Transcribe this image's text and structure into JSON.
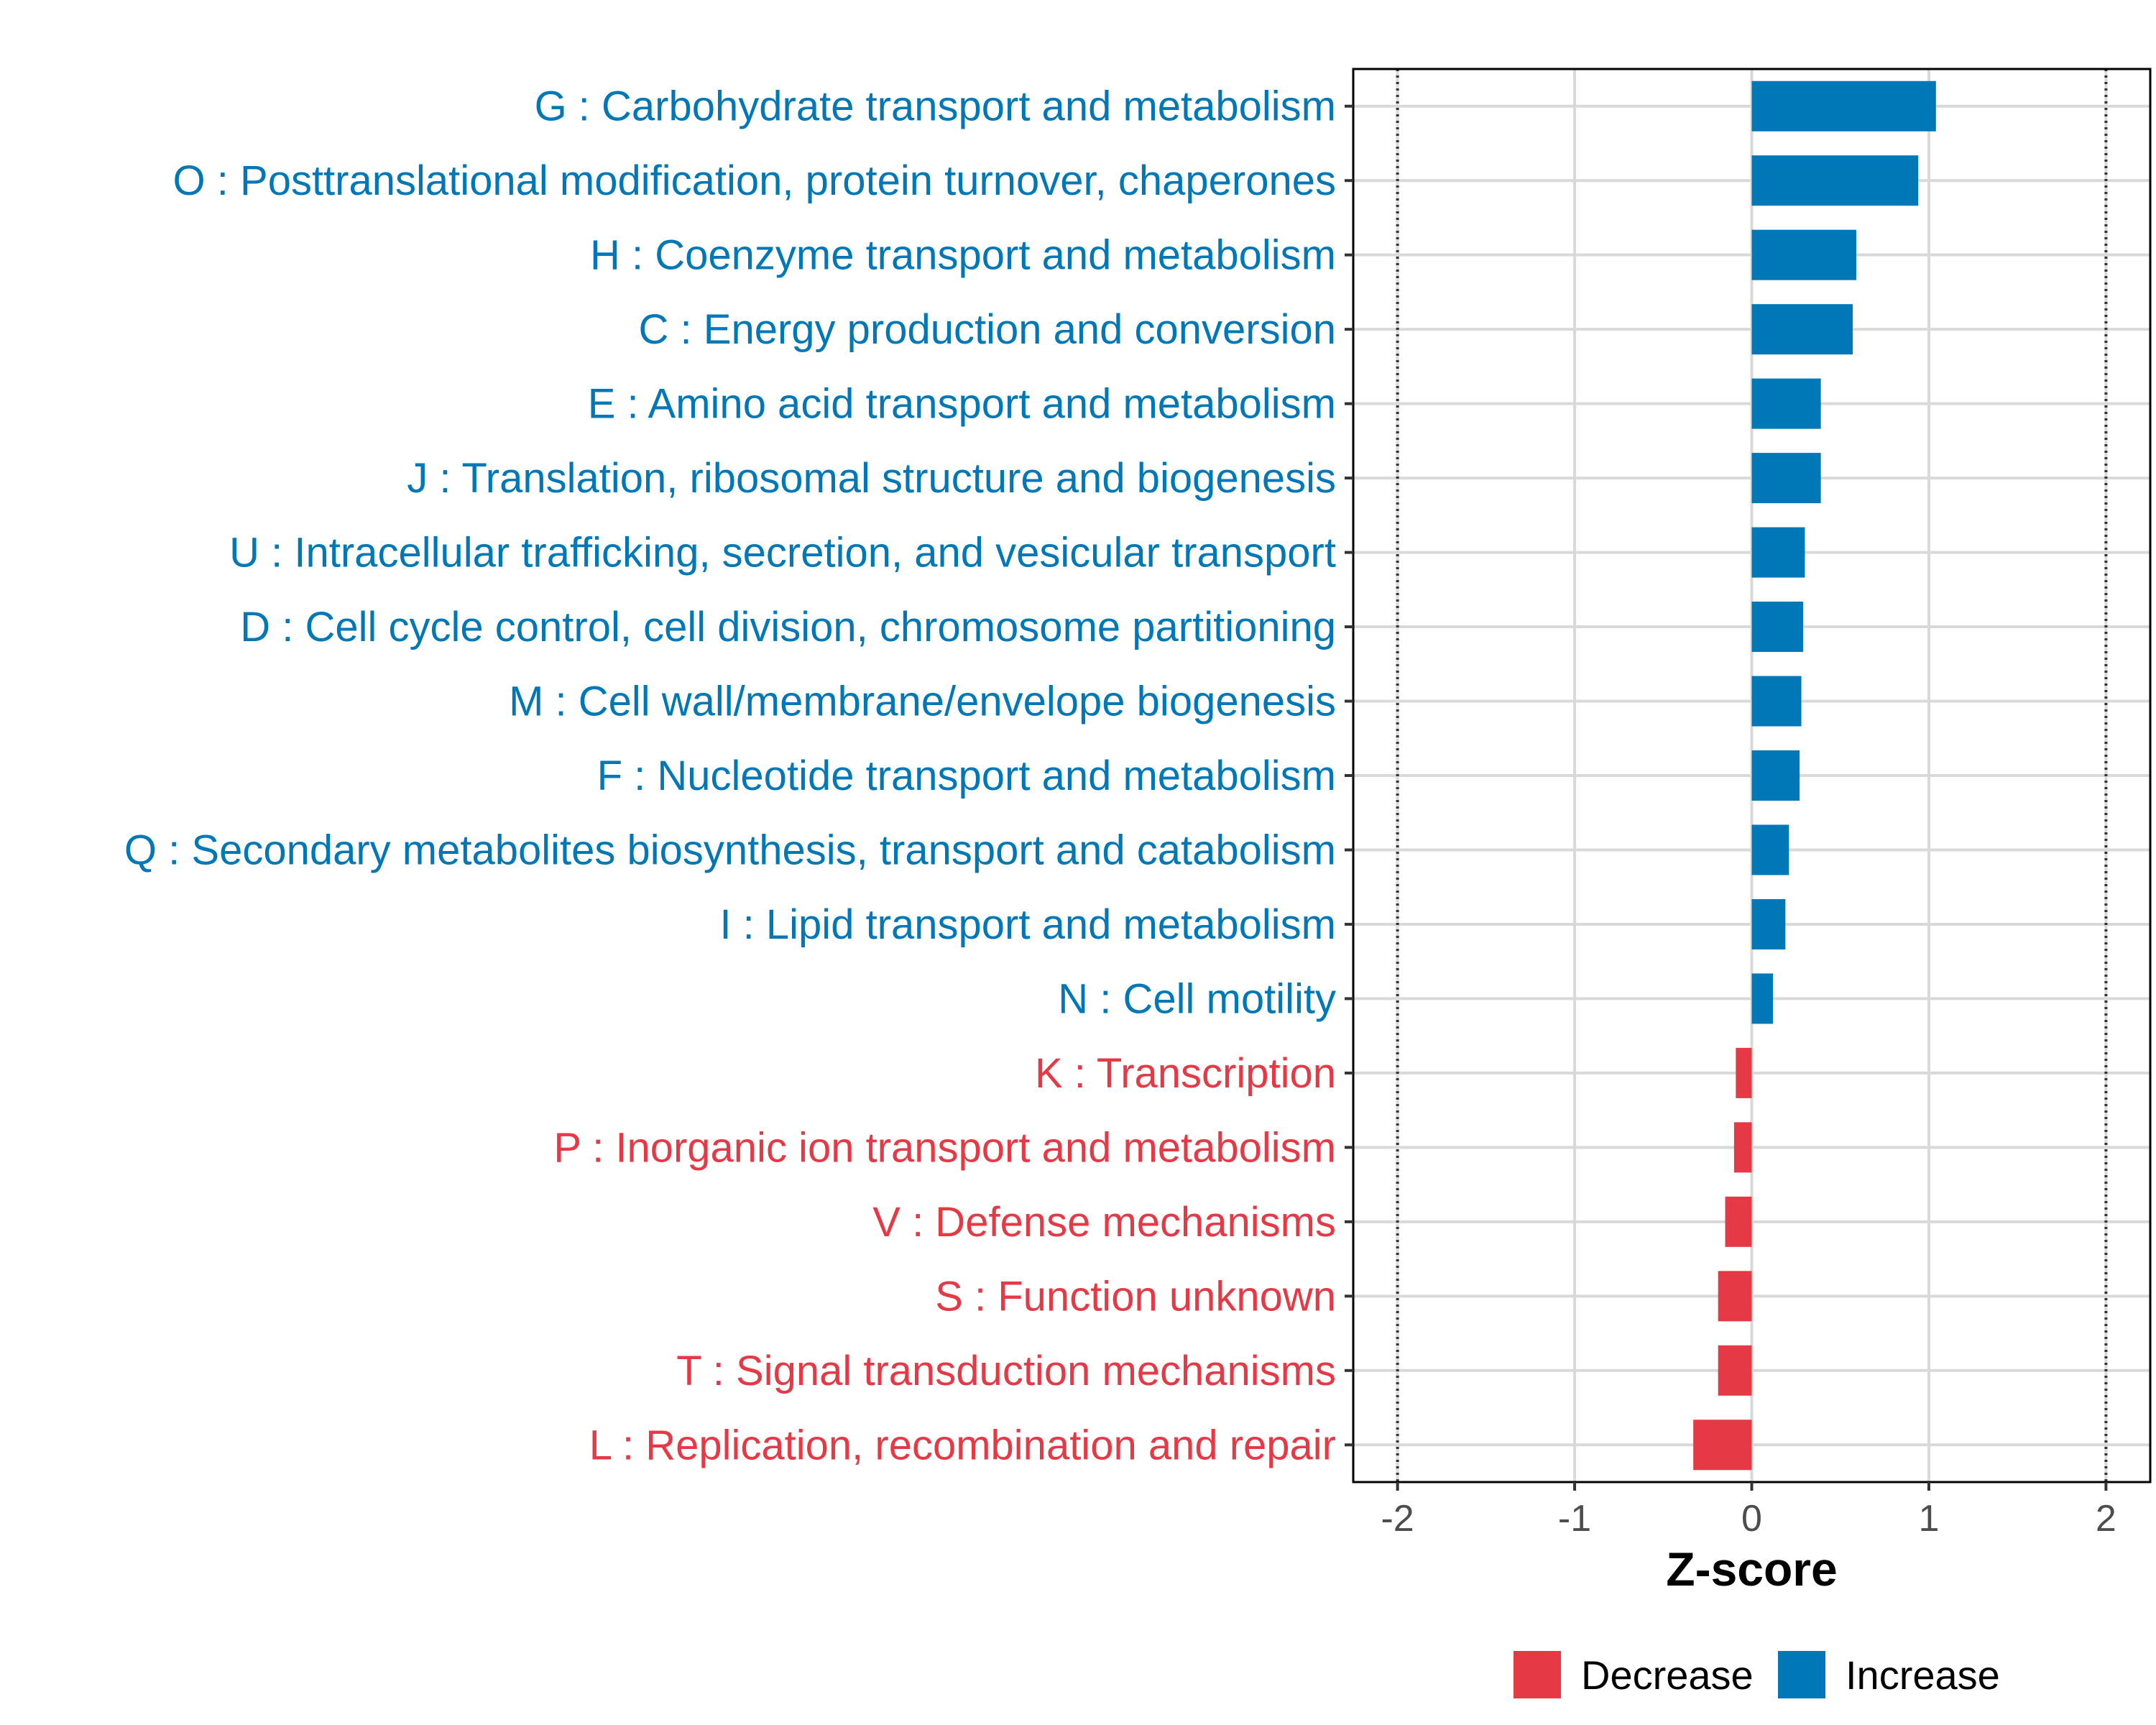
{
  "chart_data": {
    "type": "bar",
    "orientation": "horizontal",
    "xlabel": "Z-score",
    "ylabel": "",
    "xlim": [
      -2.25,
      2.25
    ],
    "x_ticks": [
      -2,
      -1,
      0,
      1,
      2
    ],
    "x_tick_labels": [
      "-2",
      "-1",
      "0",
      "1",
      "2"
    ],
    "reference_lines": [
      -2,
      2
    ],
    "grid": true,
    "legend_position": "bottom",
    "colors": {
      "Decrease": "#E63946",
      "Increase": "#0077B6"
    },
    "legend": [
      {
        "name": "Decrease",
        "color": "#E63946"
      },
      {
        "name": "Increase",
        "color": "#0077B6"
      }
    ],
    "bars": [
      {
        "label": "G : Carbohydrate transport and metabolism",
        "value": 1.04,
        "group": "Increase"
      },
      {
        "label": "O : Posttranslational modification, protein turnover, chaperones",
        "value": 0.94,
        "group": "Increase"
      },
      {
        "label": "H : Coenzyme transport and metabolism",
        "value": 0.59,
        "group": "Increase"
      },
      {
        "label": "C : Energy production and conversion",
        "value": 0.57,
        "group": "Increase"
      },
      {
        "label": "E : Amino acid transport and metabolism",
        "value": 0.39,
        "group": "Increase"
      },
      {
        "label": "J : Translation, ribosomal structure and biogenesis",
        "value": 0.39,
        "group": "Increase"
      },
      {
        "label": "U : Intracellular trafficking, secretion, and vesicular transport",
        "value": 0.3,
        "group": "Increase"
      },
      {
        "label": "D : Cell cycle control, cell division, chromosome partitioning",
        "value": 0.29,
        "group": "Increase"
      },
      {
        "label": "M : Cell wall/membrane/envelope biogenesis",
        "value": 0.28,
        "group": "Increase"
      },
      {
        "label": "F : Nucleotide transport and metabolism",
        "value": 0.27,
        "group": "Increase"
      },
      {
        "label": "Q : Secondary metabolites biosynthesis, transport and catabolism",
        "value": 0.21,
        "group": "Increase"
      },
      {
        "label": "I : Lipid transport and metabolism",
        "value": 0.19,
        "group": "Increase"
      },
      {
        "label": "N : Cell motility",
        "value": 0.12,
        "group": "Increase"
      },
      {
        "label": "K : Transcription",
        "value": -0.09,
        "group": "Decrease"
      },
      {
        "label": "P : Inorganic ion transport and metabolism",
        "value": -0.1,
        "group": "Decrease"
      },
      {
        "label": "V : Defense mechanisms",
        "value": -0.15,
        "group": "Decrease"
      },
      {
        "label": "S : Function unknown",
        "value": -0.19,
        "group": "Decrease"
      },
      {
        "label": "T : Signal transduction mechanisms",
        "value": -0.19,
        "group": "Decrease"
      },
      {
        "label": "L : Replication, recombination and repair",
        "value": -0.33,
        "group": "Decrease"
      }
    ]
  }
}
